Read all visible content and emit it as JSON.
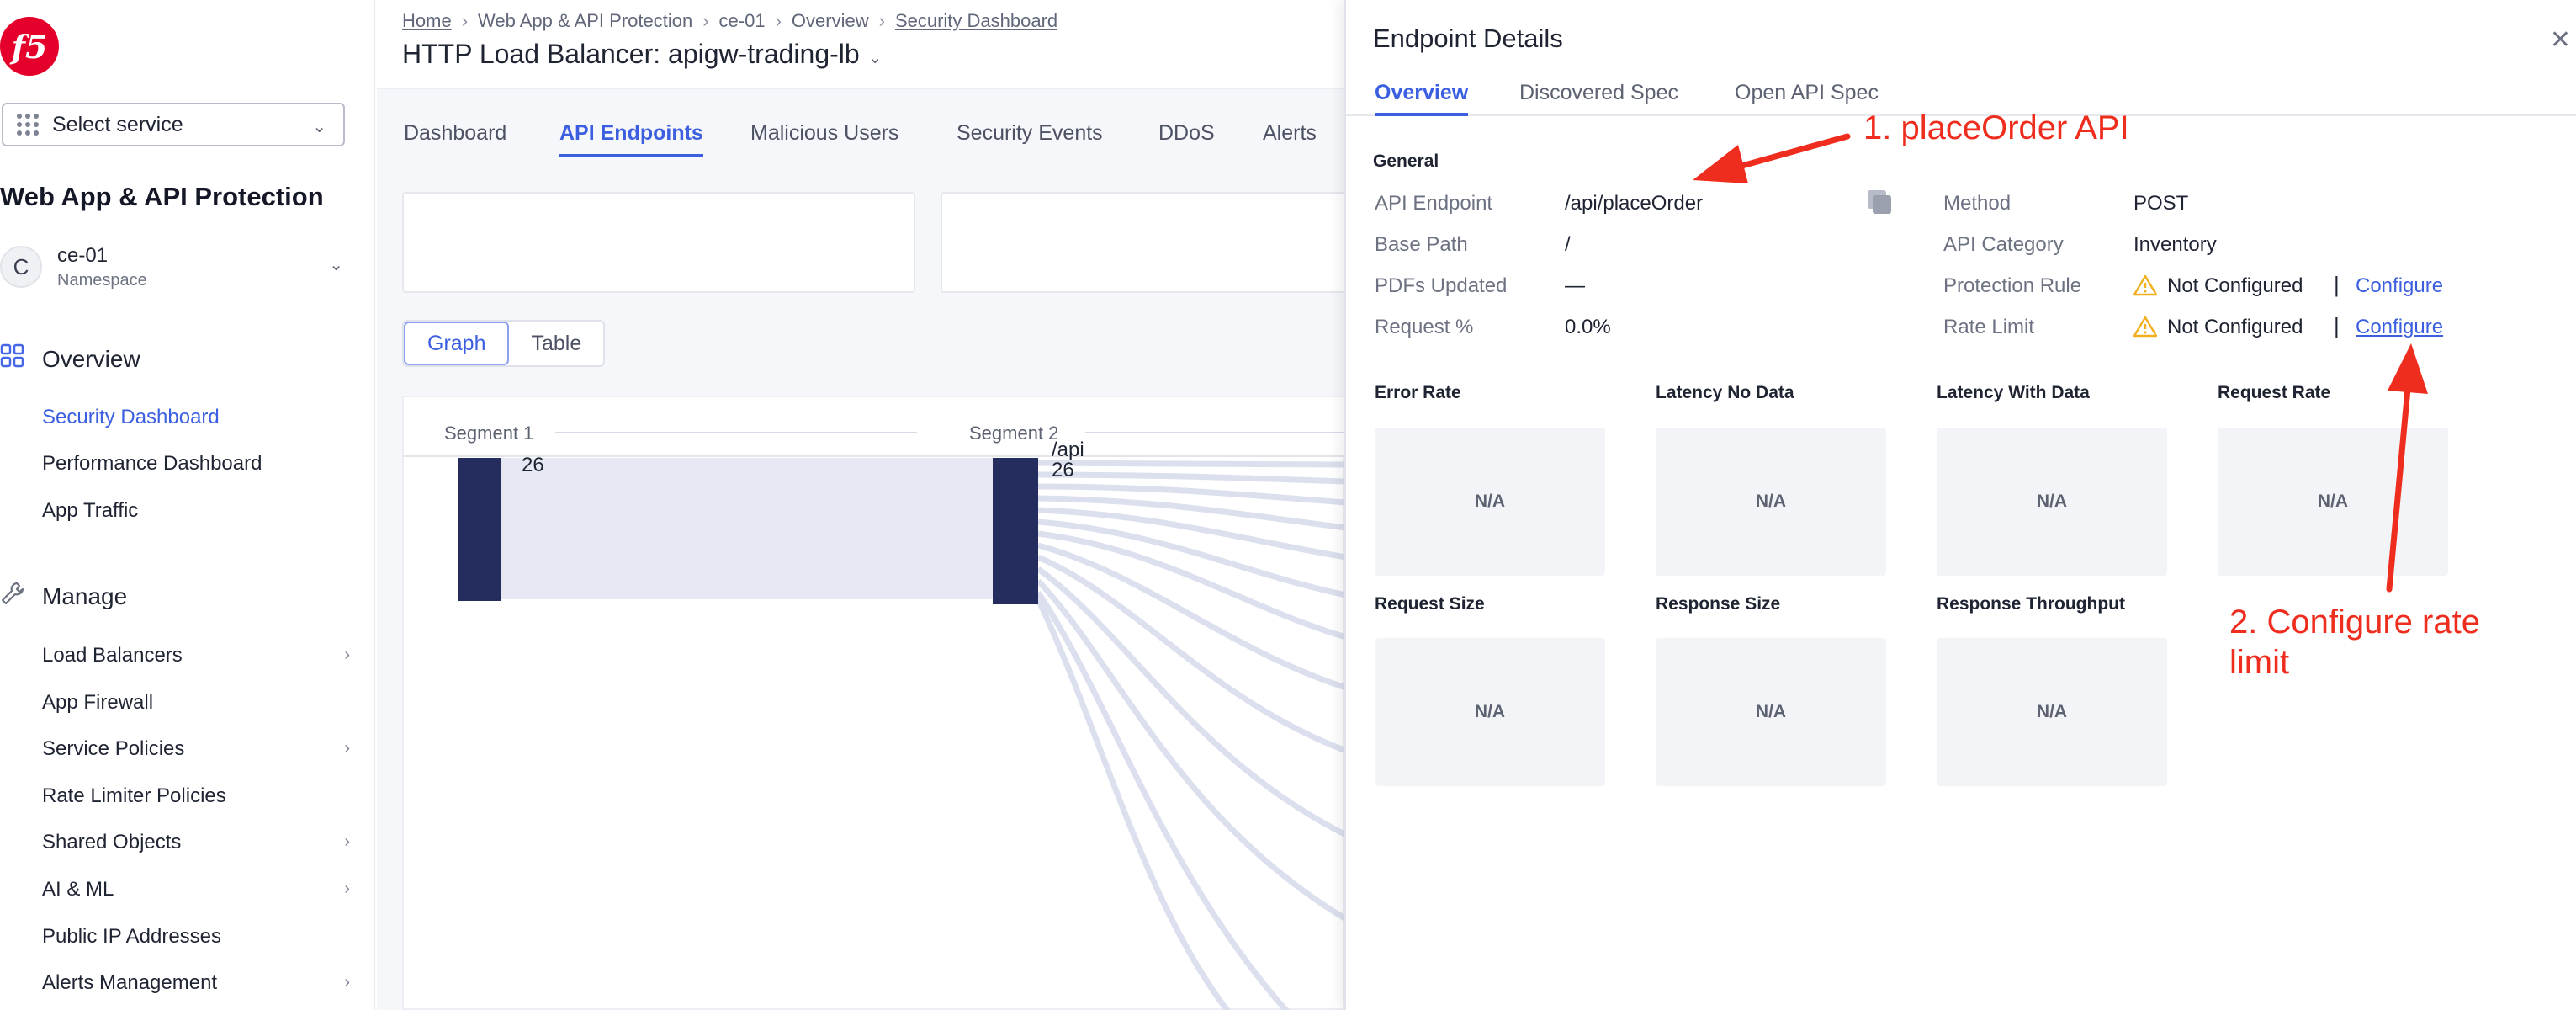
{
  "sidebar": {
    "logo_text": "f5",
    "service_select": {
      "value": "Select service"
    },
    "app_title": "Web App & API Protection",
    "namespace": {
      "avatar": "C",
      "name": "ce-01",
      "label": "Namespace"
    },
    "overview": {
      "label": "Overview",
      "icon": "grid-icon",
      "items": [
        "Security Dashboard",
        "Performance Dashboard",
        "App Traffic"
      ]
    },
    "manage": {
      "label": "Manage",
      "icon": "wrench-icon",
      "items": [
        "Load Balancers",
        "App Firewall",
        "Service Policies",
        "Rate Limiter Policies",
        "Shared Objects",
        "AI & ML",
        "Public IP Addresses",
        "Alerts Management"
      ]
    }
  },
  "header": {
    "breadcrumb": [
      "Home",
      "Web App & API Protection",
      "ce-01",
      "Overview",
      "Security Dashboard"
    ],
    "title": "HTTP Load Balancer: apigw-trading-lb"
  },
  "tabs": [
    "Dashboard",
    "API Endpoints",
    "Malicious Users",
    "Security Events",
    "DDoS",
    "Alerts"
  ],
  "active_tab": "API Endpoints",
  "view_toggle": {
    "graph": "Graph",
    "table": "Table",
    "active": "Graph"
  },
  "graph": {
    "segments": [
      "Segment 1",
      "Segment 2"
    ],
    "node1_count": "26",
    "node2_label": "/api",
    "node2_count": "26"
  },
  "panel": {
    "title": "Endpoint Details",
    "close_icon": "close-icon",
    "tabs": [
      "Overview",
      "Discovered Spec",
      "Open API Spec"
    ],
    "active_tab": "Overview",
    "general_heading": "General",
    "left_fields": [
      {
        "label": "API Endpoint",
        "value": "/api/placeOrder"
      },
      {
        "label": "Base Path",
        "value": "/"
      },
      {
        "label": "PDFs Updated",
        "value": "—"
      },
      {
        "label": "Request %",
        "value": "0.0%"
      }
    ],
    "right_fields": [
      {
        "label": "Method",
        "value": "POST"
      },
      {
        "label": "API Category",
        "value": "Inventory"
      },
      {
        "label": "Protection Rule",
        "value": "Not Configured",
        "action": "Configure"
      },
      {
        "label": "Rate Limit",
        "value": "Not Configured",
        "action": "Configure"
      }
    ],
    "divider": "|",
    "metrics": [
      {
        "title": "Error Rate",
        "value": "N/A"
      },
      {
        "title": "Latency No Data",
        "value": "N/A"
      },
      {
        "title": "Latency With Data",
        "value": "N/A"
      },
      {
        "title": "Request Rate",
        "value": "N/A"
      },
      {
        "title": "Request Size",
        "value": "N/A"
      },
      {
        "title": "Response Size",
        "value": "N/A"
      },
      {
        "title": "Response Throughput",
        "value": "N/A"
      }
    ]
  },
  "annotations": {
    "step1": "1. placeOrder API",
    "step2_line1": "2. Configure rate",
    "step2_line2": "limit",
    "color": "#ef2d1e"
  },
  "colors": {
    "accent": "#3c5fe0",
    "brand": "#e4002b",
    "warning": "#f2b01e",
    "node": "#252d5e"
  }
}
